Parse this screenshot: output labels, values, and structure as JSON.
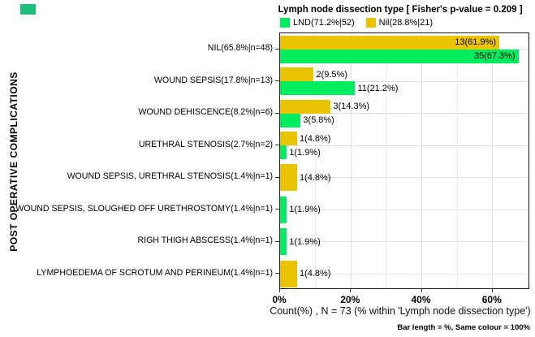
{
  "colors": {
    "lnd_green": "#00ED5F",
    "nil_yellow": "#EBC400",
    "corner_mark": "#20BE7B",
    "grid_major": "#E0E0E0",
    "grid_minor": "#ECECEC",
    "panel_border": "#1A1A1A"
  },
  "chart_data": {
    "type": "bar",
    "orientation": "horizontal",
    "title": "Lymph node dissection type [ Fisher's p-value = 0.209 ]",
    "xlabel": "Count(%) , N = 73 (% within 'Lymph node dissection type')",
    "ylabel": "POST OPERATIVE COMPLICATIONS",
    "caption": "Bar length = %, Same colour = 100%",
    "xlim": [
      0,
      70.6
    ],
    "x_tick_values": [
      0,
      20,
      40,
      60
    ],
    "x_tick_labels": [
      "0%",
      "20%",
      "40%",
      "60%"
    ],
    "grid": true,
    "legend_position": "top",
    "categories": [
      "NIL(65.8%|n=48)",
      "WOUND SEPSIS(17.8%|n=13)",
      "WOUND DEHISCENCE(8.2%|n=6)",
      "URETHRAL STENOSIS(2.7%|n=2)",
      "WOUND SEPSIS, URETHRAL STENOSIS(1.4%|n=1)",
      "WOUND SEPSIS, SLOUGHED OFF URETHROSTOMY(1.4%|n=1)",
      "RIGH THIGH ABSCESS(1.4%|n=1)",
      "LYMPHOEDEMA OF SCROTUM AND PERINEUM(1.4%|n=1)"
    ],
    "series": [
      {
        "name": "LND(71.2%|52)",
        "color": "#00ED5F",
        "counts": [
          35,
          11,
          3,
          1,
          null,
          1,
          1,
          null
        ],
        "pct": [
          67.3,
          21.2,
          5.8,
          1.9,
          null,
          1.9,
          1.9,
          null
        ]
      },
      {
        "name": "Nil(28.8%|21)",
        "color": "#EBC400",
        "counts": [
          13,
          2,
          3,
          1,
          1,
          null,
          null,
          1
        ],
        "pct": [
          61.9,
          9.5,
          14.3,
          4.8,
          4.8,
          null,
          null,
          4.8
        ]
      }
    ]
  },
  "rows": [
    {
      "category": "NIL(65.8%|n=48)",
      "bars": [
        {
          "series": "Nil",
          "pct": 61.9,
          "label": "13(61.9%)",
          "inside": true
        },
        {
          "series": "LND",
          "pct": 67.3,
          "label": "35(67.3%)",
          "inside": true
        }
      ]
    },
    {
      "category": "WOUND SEPSIS(17.8%|n=13)",
      "bars": [
        {
          "series": "Nil",
          "pct": 9.5,
          "label": "2(9.5%)",
          "inside": false
        },
        {
          "series": "LND",
          "pct": 21.2,
          "label": "11(21.2%)",
          "inside": false
        }
      ]
    },
    {
      "category": "WOUND DEHISCENCE(8.2%|n=6)",
      "bars": [
        {
          "series": "Nil",
          "pct": 14.3,
          "label": "3(14.3%)",
          "inside": false
        },
        {
          "series": "LND",
          "pct": 5.8,
          "label": "3(5.8%)",
          "inside": false
        }
      ]
    },
    {
      "category": "URETHRAL STENOSIS(2.7%|n=2)",
      "bars": [
        {
          "series": "Nil",
          "pct": 4.8,
          "label": "1(4.8%)",
          "inside": false
        },
        {
          "series": "LND",
          "pct": 1.9,
          "label": "1(1.9%)",
          "inside": false
        }
      ]
    },
    {
      "category": "WOUND SEPSIS, URETHRAL STENOSIS(1.4%|n=1)",
      "bars": [
        {
          "series": "Nil",
          "pct": 4.8,
          "label": "1(4.8%)",
          "inside": false
        }
      ]
    },
    {
      "category": "WOUND SEPSIS, SLOUGHED OFF URETHROSTOMY(1.4%|n=1)",
      "bars": [
        {
          "series": "LND",
          "pct": 1.9,
          "label": "1(1.9%)",
          "inside": false
        }
      ]
    },
    {
      "category": "RIGH THIGH ABSCESS(1.4%|n=1)",
      "bars": [
        {
          "series": "LND",
          "pct": 1.9,
          "label": "1(1.9%)",
          "inside": false
        }
      ]
    },
    {
      "category": "LYMPHOEDEMA OF SCROTUM AND PERINEUM(1.4%|n=1)",
      "bars": [
        {
          "series": "Nil",
          "pct": 4.8,
          "label": "1(4.8%)",
          "inside": false
        }
      ]
    }
  ]
}
